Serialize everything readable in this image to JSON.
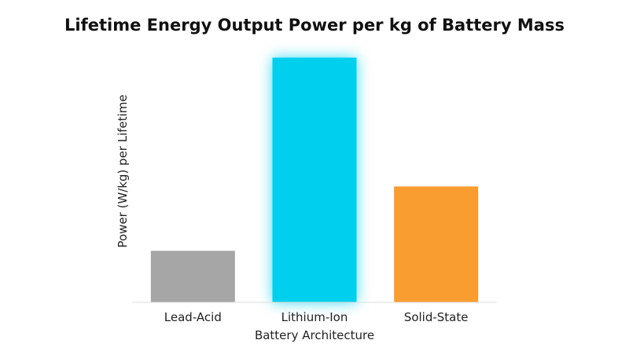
{
  "chart_data": {
    "type": "bar",
    "title": "Lifetime Energy Output Power per kg of Battery Mass",
    "xlabel": "Battery Architecture",
    "ylabel": "Power (W/kg) per Lifetime",
    "categories": [
      "Lead-Acid",
      "Lithium-Ion",
      "Solid-State"
    ],
    "values": [
      20,
      95,
      45
    ],
    "colors": [
      "#a6a6a6",
      "#00d0ee",
      "#f99d31"
    ],
    "highlight": {
      "category": "Lithium-Ion",
      "effect": "glow",
      "color": "#00d0ee"
    },
    "ylim": [
      0,
      100
    ],
    "y_ticks_shown": false,
    "grid": false,
    "legend": "none"
  }
}
